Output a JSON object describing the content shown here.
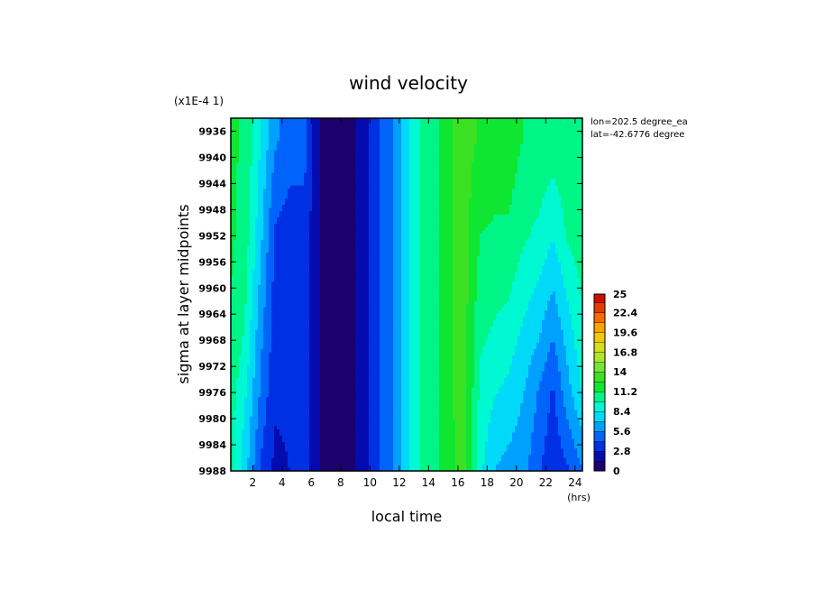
{
  "chart_data": {
    "type": "heatmap",
    "title": "wind velocity",
    "scale_note": "(x1E-4 1)",
    "xlabel": "local time",
    "x_unit": "(hrs)",
    "ylabel": "sigma at layer midpoints",
    "xlim": [
      0.5,
      24.5
    ],
    "ylim": [
      9988,
      9934
    ],
    "x_ticks": [
      "2",
      "4",
      "6",
      "8",
      "10",
      "12",
      "14",
      "16",
      "18",
      "20",
      "22",
      "24"
    ],
    "y_ticks": [
      "9936",
      "9940",
      "9944",
      "9948",
      "9952",
      "9956",
      "9960",
      "9964",
      "9968",
      "9972",
      "9976",
      "9980",
      "9984",
      "9988"
    ],
    "annotations": [
      "lon=202.5 degree_ea",
      "lat=-42.6776 degree"
    ],
    "colorbar": {
      "min": 0,
      "max": 25,
      "step": 1.4,
      "labels": [
        "25",
        "22.4",
        "19.6",
        "16.8",
        "14",
        "11.2",
        "8.4",
        "5.6",
        "2.8",
        "0"
      ]
    },
    "x": [
      0.5,
      1.5,
      2.5,
      3.5,
      4.5,
      5.5,
      6.5,
      7.5,
      8.5,
      9.5,
      10.5,
      11.5,
      12.5,
      13.5,
      14.5,
      15.5,
      16.5,
      17.5,
      18.5,
      19.5,
      20.5,
      21.5,
      22.5,
      23.5,
      24.5
    ],
    "y": [
      9936,
      9952,
      9968,
      9976,
      9988
    ],
    "z": [
      [
        11.5,
        11.0,
        8.5,
        6.0,
        5.0,
        5.0,
        1.5,
        0.8,
        1.0,
        1.8,
        3.8,
        5.5,
        8.0,
        9.8,
        11.0,
        12.5,
        13.2,
        12.5,
        12.0,
        12.0,
        11.2,
        11.0,
        10.8,
        11.0,
        11.0
      ],
      [
        11.5,
        10.5,
        7.5,
        4.0,
        3.5,
        3.5,
        1.5,
        0.8,
        1.0,
        1.8,
        3.8,
        5.5,
        8.0,
        9.8,
        11.0,
        12.5,
        13.0,
        11.2,
        11.0,
        11.0,
        10.0,
        9.5,
        8.5,
        10.0,
        10.5
      ],
      [
        11.0,
        9.5,
        6.0,
        3.5,
        3.0,
        3.5,
        1.5,
        0.8,
        1.0,
        1.8,
        3.8,
        5.5,
        8.0,
        9.8,
        11.0,
        12.5,
        13.0,
        10.0,
        9.5,
        9.0,
        8.0,
        7.0,
        5.5,
        7.5,
        9.5
      ],
      [
        10.5,
        8.5,
        5.5,
        3.0,
        3.0,
        3.5,
        1.5,
        0.8,
        1.0,
        1.8,
        3.8,
        5.5,
        8.0,
        9.8,
        11.0,
        12.5,
        13.0,
        9.5,
        8.5,
        8.0,
        7.0,
        5.5,
        4.0,
        6.5,
        8.5
      ],
      [
        10.0,
        7.5,
        4.0,
        2.5,
        2.8,
        3.5,
        1.5,
        0.8,
        1.0,
        1.8,
        3.8,
        5.5,
        8.0,
        9.8,
        11.0,
        12.5,
        12.8,
        8.8,
        7.0,
        6.5,
        6.0,
        4.5,
        3.0,
        4.0,
        5.5
      ]
    ]
  }
}
